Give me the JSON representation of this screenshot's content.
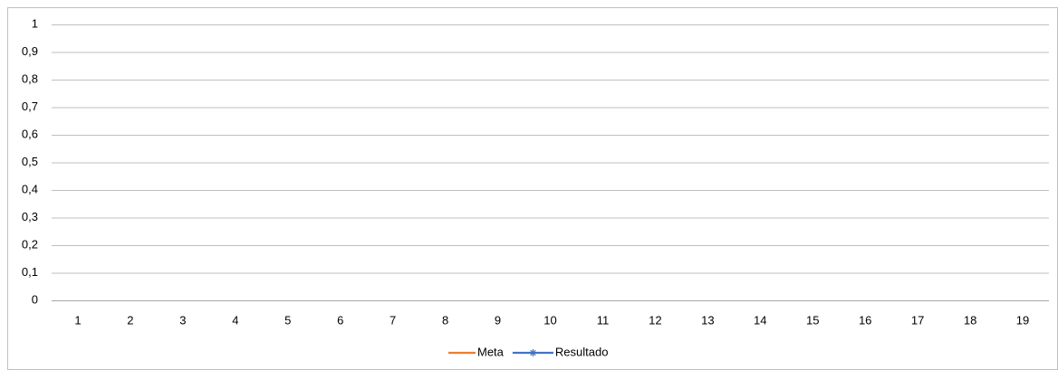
{
  "chart_data": {
    "type": "line",
    "categories": [
      "1",
      "2",
      "3",
      "4",
      "5",
      "6",
      "7",
      "8",
      "9",
      "10",
      "11",
      "12",
      "13",
      "14",
      "15",
      "16",
      "17",
      "18",
      "19"
    ],
    "series": [
      {
        "name": "Meta",
        "color": "#ed7d31",
        "values": [
          null,
          null,
          null,
          null,
          null,
          null,
          null,
          null,
          null,
          null,
          null,
          null,
          null,
          null,
          null,
          null,
          null,
          null,
          null
        ]
      },
      {
        "name": "Resultado",
        "color": "#4472c4",
        "marker": "star",
        "values": [
          null,
          null,
          null,
          null,
          null,
          null,
          null,
          null,
          null,
          null,
          null,
          null,
          null,
          null,
          null,
          null,
          null,
          null,
          null
        ]
      }
    ],
    "ylim": [
      0,
      1
    ],
    "yticks": [
      0,
      {
        "value": 0.1,
        "label": "0,1"
      },
      {
        "value": 0.2,
        "label": "0,2"
      },
      {
        "value": 0.3,
        "label": "0,3"
      },
      {
        "value": 0.4,
        "label": "0,4"
      },
      {
        "value": 0.5,
        "label": "0,5"
      },
      {
        "value": 0.6,
        "label": "0,6"
      },
      {
        "value": 0.7,
        "label": "0,7"
      },
      {
        "value": 0.8,
        "label": "0,8"
      },
      {
        "value": 0.9,
        "label": "0,9"
      },
      1
    ],
    "grid": true,
    "legend": "bottom"
  }
}
